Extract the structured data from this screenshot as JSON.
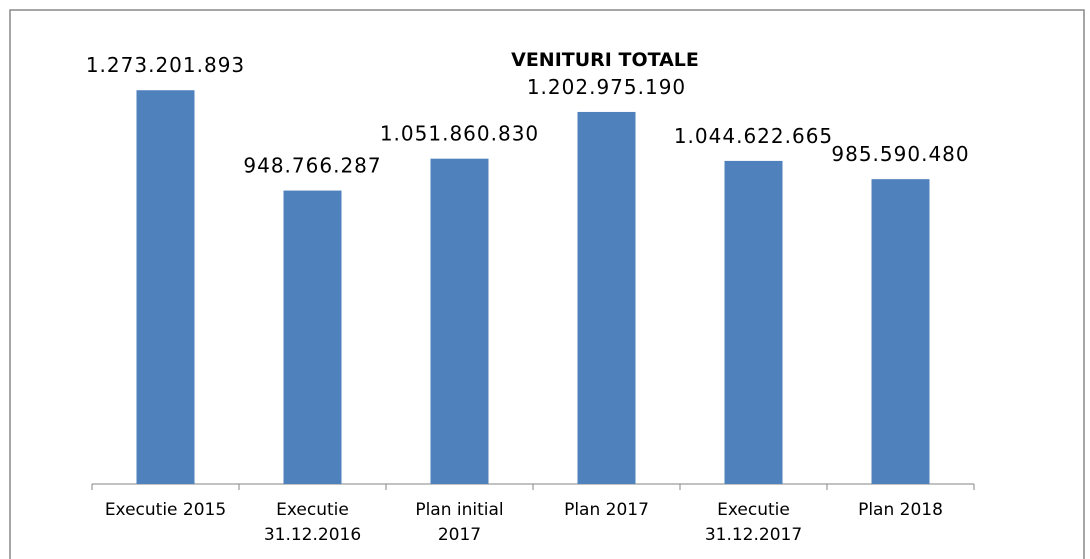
{
  "chart_data": {
    "type": "bar",
    "title": "VENITURI TOTALE",
    "categories": [
      "Executie 2015",
      "Executie\n31.12.2016",
      "Plan initial\n2017",
      "Plan 2017",
      "Executie\n31.12.2017",
      "Plan 2018"
    ],
    "values": [
      1273201893,
      948766287,
      1051860830,
      1202975190,
      1044622665,
      985590480
    ],
    "value_labels": [
      "1.273.201.893",
      "948.766.287",
      "1.051.860.830",
      "1.202.975.190",
      "1.044.622.665",
      "985.590.480"
    ],
    "color": "#4f81bd",
    "ylim": [
      0,
      1400000000
    ]
  }
}
